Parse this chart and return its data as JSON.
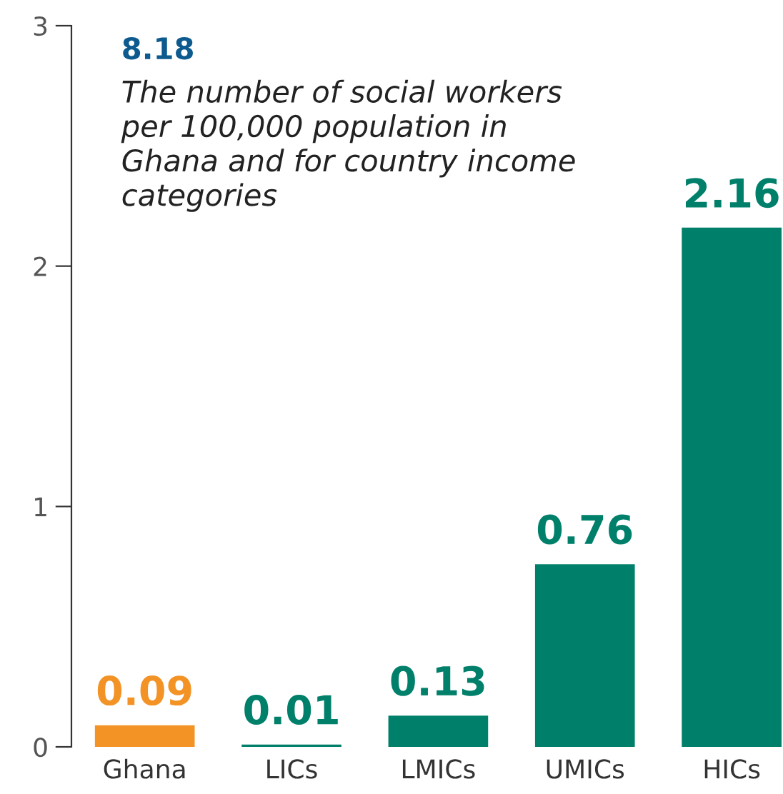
{
  "chart_data": {
    "type": "bar",
    "title": "8.18",
    "subtitle": "The number of social workers per 100,000 population in Ghana and for country income categories",
    "categories": [
      "Ghana",
      "LICs",
      "LMICs",
      "UMICs",
      "HICs"
    ],
    "values": [
      0.09,
      0.01,
      0.13,
      0.76,
      2.16
    ],
    "colors": [
      "#f39325",
      "#00806a",
      "#00806a",
      "#00806a",
      "#00806a"
    ],
    "ylim": [
      0,
      3
    ],
    "yticks": [
      0,
      1,
      2,
      3
    ],
    "grid": false,
    "data_labels": true
  }
}
